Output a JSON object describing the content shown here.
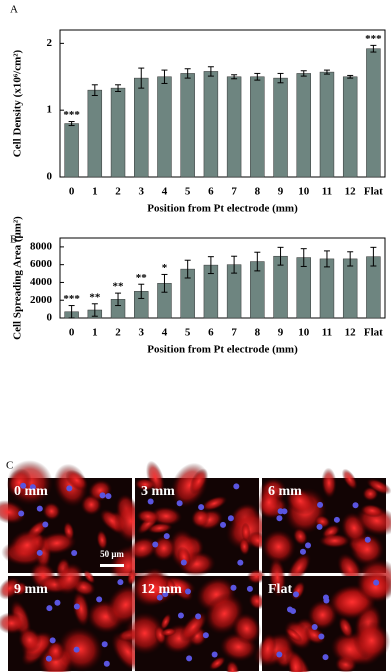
{
  "chart_data": [
    {
      "type": "bar",
      "panel_label": "A",
      "ylabel": "Cell Density (x10⁶/cm²)",
      "xlabel": "Position from Pt electrode (mm)",
      "categories": [
        "0",
        "1",
        "2",
        "3",
        "4",
        "5",
        "6",
        "7",
        "8",
        "9",
        "10",
        "11",
        "12",
        "Flat"
      ],
      "values": [
        0.8,
        1.3,
        1.33,
        1.48,
        1.5,
        1.55,
        1.58,
        1.5,
        1.5,
        1.48,
        1.55,
        1.57,
        1.5,
        1.92
      ],
      "errors": [
        0.03,
        0.08,
        0.05,
        0.15,
        0.1,
        0.07,
        0.07,
        0.03,
        0.05,
        0.07,
        0.04,
        0.03,
        0.02,
        0.05
      ],
      "annotations": [
        "***",
        null,
        null,
        null,
        null,
        null,
        null,
        null,
        null,
        null,
        null,
        null,
        null,
        "***"
      ],
      "color": "#6e8580",
      "ylim": [
        0,
        2.2
      ],
      "yticks": [
        0,
        1,
        2
      ]
    },
    {
      "type": "bar",
      "panel_label": "B",
      "ylabel": "Cell Spreading Area (μm²)",
      "xlabel": "Position from Pt electrode (mm)",
      "categories": [
        "0",
        "1",
        "2",
        "3",
        "4",
        "5",
        "6",
        "7",
        "8",
        "9",
        "10",
        "11",
        "12",
        "Flat"
      ],
      "values": [
        700,
        900,
        2100,
        3000,
        3900,
        5500,
        5950,
        6000,
        6350,
        6950,
        6800,
        6650,
        6650,
        6900
      ],
      "errors": [
        700,
        700,
        700,
        800,
        1000,
        1000,
        950,
        950,
        1050,
        1000,
        1000,
        900,
        800,
        1050
      ],
      "annotations": [
        "***",
        "**",
        "**",
        "**",
        "*",
        null,
        null,
        null,
        null,
        null,
        null,
        null,
        null,
        null
      ],
      "color": "#6e8580",
      "ylim": [
        0,
        9000
      ],
      "yticks": [
        0,
        2000,
        4000,
        6000,
        8000
      ]
    }
  ],
  "image_panel": {
    "panel_label": "C",
    "tiles": [
      "0 mm",
      "3 mm",
      "6 mm",
      "9 mm",
      "12 mm",
      "Flat"
    ],
    "scale_bar": "50 μm"
  }
}
